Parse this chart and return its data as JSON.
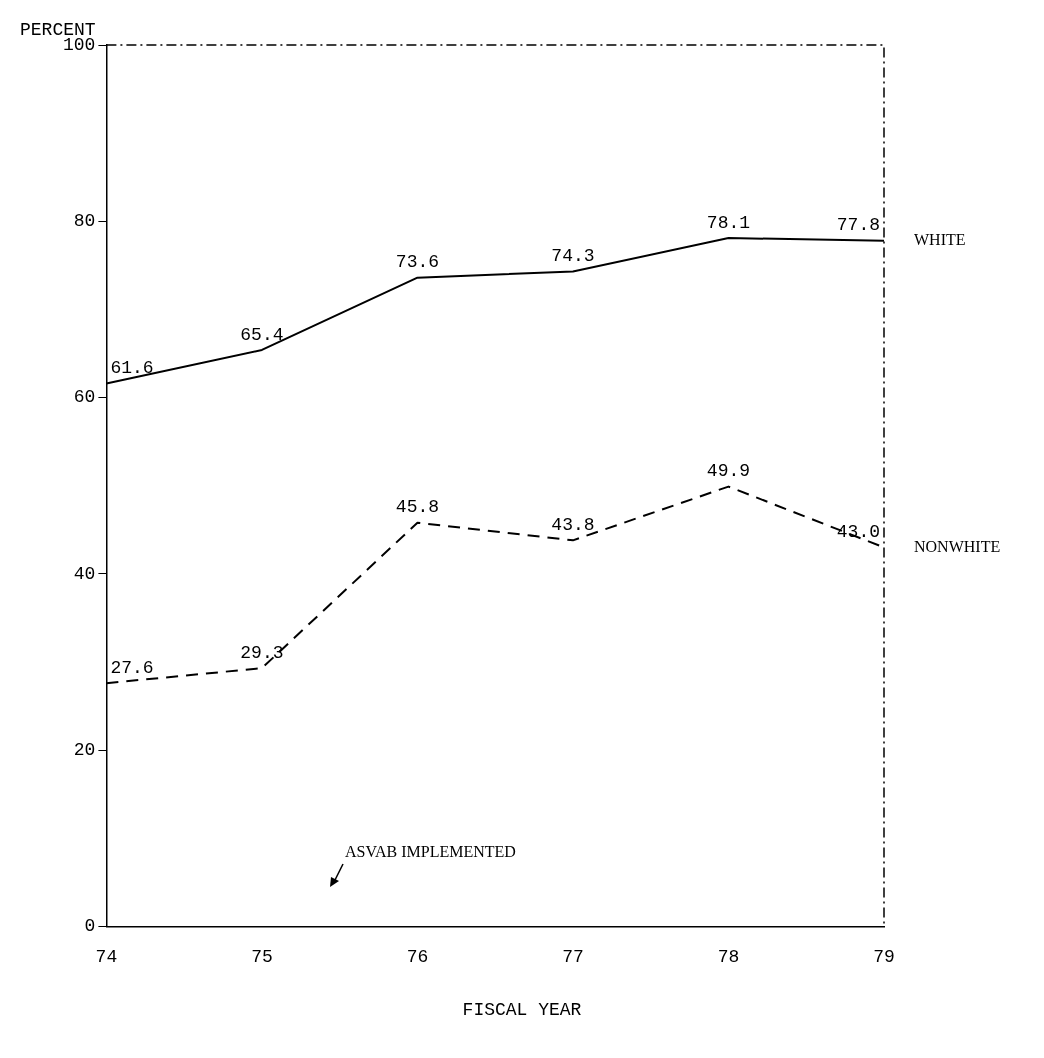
{
  "chart_data": {
    "type": "line",
    "xlabel": "FISCAL YEAR",
    "ylabel": "PERCENT",
    "x": [
      74,
      75,
      76,
      77,
      78,
      79
    ],
    "series": [
      {
        "name": "WHITE",
        "color": "#000000",
        "line_style": "solid",
        "values": [
          61.6,
          65.4,
          73.6,
          74.3,
          78.1,
          77.8
        ],
        "value_labels": [
          "61.6",
          "65.4",
          "73.6",
          "74.3",
          "78.1",
          "77.8"
        ]
      },
      {
        "name": "NONWHITE",
        "color": "#000000",
        "line_style": "dashed",
        "values": [
          27.6,
          29.3,
          45.8,
          43.8,
          49.9,
          43.0
        ],
        "value_labels": [
          "27.6",
          "29.3",
          "45.8",
          "43.8",
          "49.9",
          "43.0"
        ]
      }
    ],
    "xlim": [
      74,
      79
    ],
    "xticks": [
      74,
      75,
      76,
      77,
      78,
      79
    ],
    "ylim": [
      0,
      100
    ],
    "yticks": [
      0,
      20,
      40,
      60,
      80,
      100
    ],
    "grid": false,
    "legend": false,
    "marker": "none",
    "annotations": [
      "ASVAB IMPLEMENTED"
    ]
  }
}
